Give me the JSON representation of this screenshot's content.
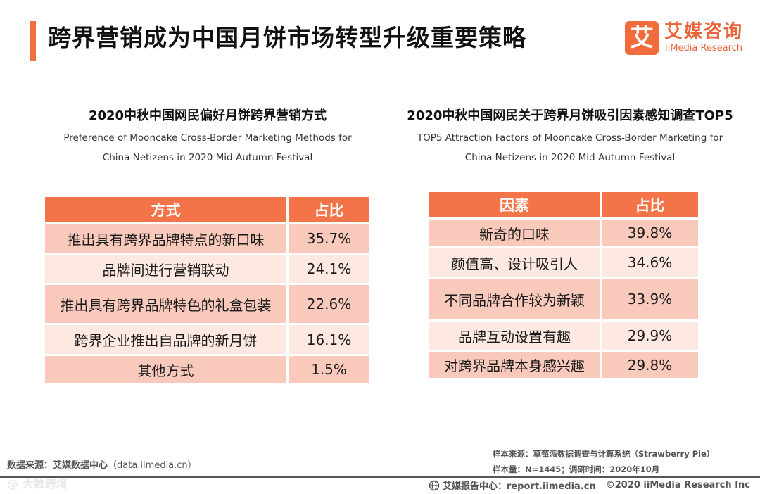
{
  "header": {
    "title": "跨界营销成为中国月饼市场转型升级重要策略",
    "logo_mark": "艾",
    "logo_cn": "艾媒咨询",
    "logo_en": "iiMedia Research"
  },
  "left_table": {
    "title": "2020中秋中国网民偏好月饼跨界营销方式",
    "subtitle_line1": "Preference of Mooncake Cross-Border Marketing Methods for",
    "subtitle_line2": "China Netizens in 2020 Mid-Autumn Festival",
    "headers": [
      "方式",
      "占比"
    ],
    "rows": [
      {
        "label": "推出具有跨界品牌特点的新口味",
        "value": "35.7%"
      },
      {
        "label": "品牌间进行营销联动",
        "value": "24.1%"
      },
      {
        "label": "推出具有跨界品牌特色的礼盒包装",
        "value": "22.6%"
      },
      {
        "label": "跨界企业推出自品牌的新月饼",
        "value": "16.1%"
      },
      {
        "label": "其他方式",
        "value": "1.5%"
      }
    ]
  },
  "right_table": {
    "title": "2020中秋中国网民关于跨界月饼吸引因素感知调查TOP5",
    "subtitle_line1": "TOP5 Attraction Factors of Mooncake Cross-Border Marketing for",
    "subtitle_line2": "China Netizens in 2020 Mid-Autumn Festival",
    "headers": [
      "因素",
      "占比"
    ],
    "rows": [
      {
        "label": "新奇的口味",
        "value": "39.8%"
      },
      {
        "label": "颜值高、设计吸引人",
        "value": "34.6%"
      },
      {
        "label": "不同品牌合作较为新颖",
        "value": "33.9%"
      },
      {
        "label": "品牌互动设置有趣",
        "value": "29.9%"
      },
      {
        "label": "对跨界品牌本身感兴趣",
        "value": "29.8%"
      }
    ]
  },
  "footer": {
    "source_label": "数据来源：艾媒数据中心",
    "source_value": "（data.iimedia.cn）",
    "watermark": "@ 大数跨境",
    "sample_source": "样本来源：草莓派数据调查与计算系统（Strawberry Pie）",
    "sample_size": "样本量：N=1445；调研时间：2020年10月",
    "report_center": "艾媒报告中心：report.iimedia.cn",
    "copyright": "©2020  iiMedia Research  Inc",
    "accent_color": "#f4744a",
    "globe_icon": "globe-icon"
  }
}
